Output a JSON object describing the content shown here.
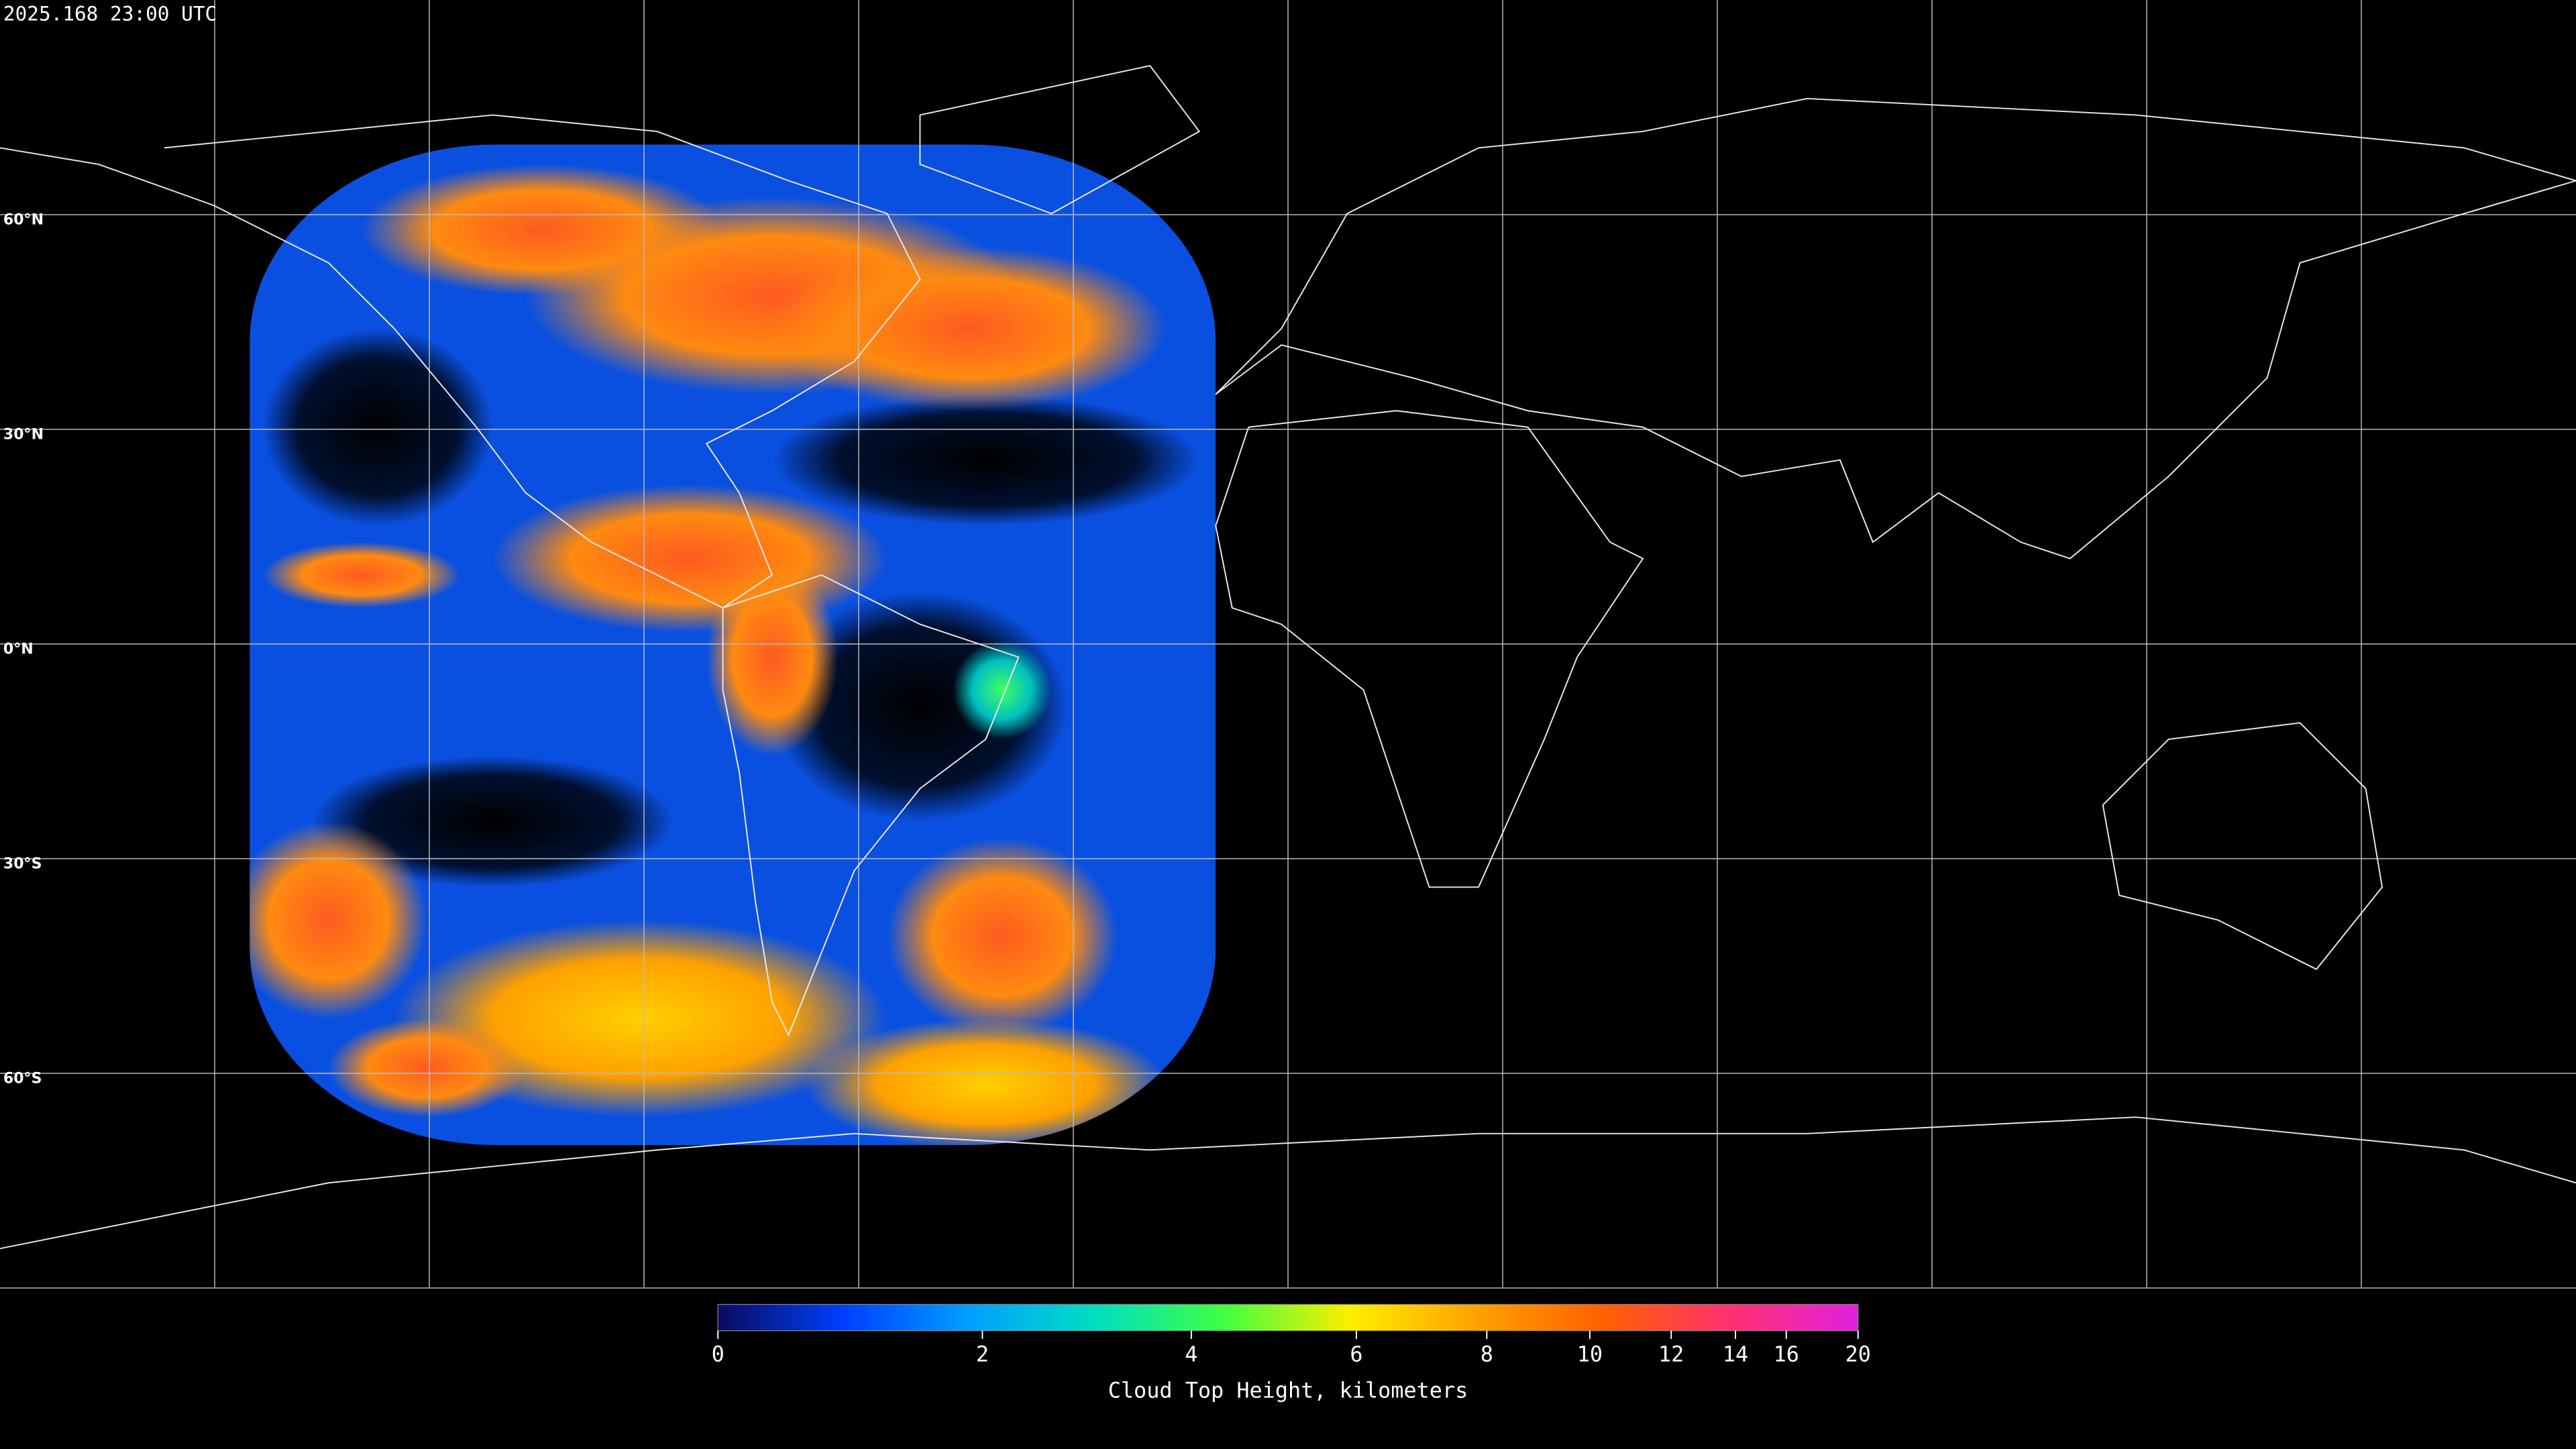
{
  "timestamp": "2025.168 23:00 UTC",
  "latitude_labels": [
    "60°N",
    "30°N",
    "0°N",
    "30°S",
    "60°S"
  ],
  "colorbar": {
    "title": "Cloud Top Height, kilometers",
    "range": [
      0,
      20
    ],
    "ticks": [
      0,
      2,
      4,
      6,
      8,
      10,
      12,
      14,
      16,
      20
    ],
    "colors": [
      "#0a0a60",
      "#0040ff",
      "#00a0ff",
      "#00e0c0",
      "#40ff40",
      "#ffee00",
      "#ffa000",
      "#ff6000",
      "#ff3070",
      "#e020e0"
    ]
  }
}
